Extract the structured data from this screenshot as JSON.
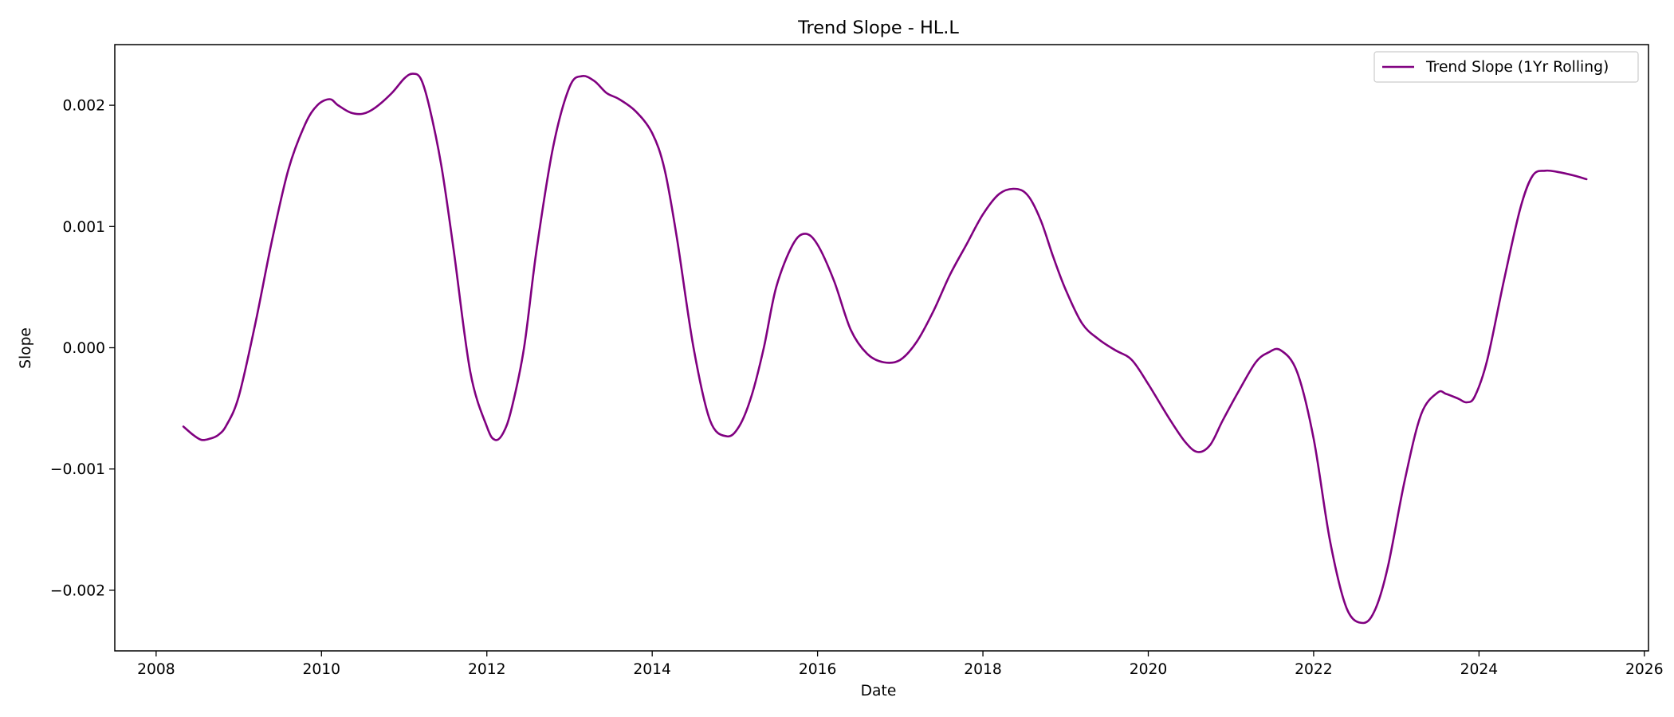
{
  "chart_data": {
    "type": "line",
    "title": "Trend Slope - HL.L",
    "xlabel": "Date",
    "ylabel": "Slope",
    "xlim": [
      2007.5,
      2026.05
    ],
    "ylim": [
      -0.0025,
      0.0025
    ],
    "grid": false,
    "legend_position": "top-right",
    "x_ticks": [
      2008,
      2010,
      2012,
      2014,
      2016,
      2018,
      2020,
      2022,
      2024,
      2026
    ],
    "x_tick_labels": [
      "2008",
      "2010",
      "2012",
      "2014",
      "2016",
      "2018",
      "2020",
      "2022",
      "2024",
      "2026"
    ],
    "y_ticks": [
      -0.002,
      -0.001,
      0.0,
      0.001,
      0.002
    ],
    "y_tick_labels": [
      "−0.002",
      "−0.001",
      "0.000",
      "0.001",
      "0.002"
    ],
    "series": [
      {
        "name": "Trend Slope (1Yr Rolling)",
        "color": "#800080",
        "x": [
          2008.33,
          2008.45,
          2008.55,
          2008.65,
          2008.75,
          2008.85,
          2009.0,
          2009.2,
          2009.4,
          2009.6,
          2009.8,
          2009.95,
          2010.1,
          2010.2,
          2010.35,
          2010.5,
          2010.65,
          2010.85,
          2011.0,
          2011.1,
          2011.2,
          2011.3,
          2011.45,
          2011.6,
          2011.8,
          2012.0,
          2012.1,
          2012.2,
          2012.3,
          2012.45,
          2012.6,
          2012.8,
          2013.0,
          2013.15,
          2013.3,
          2013.45,
          2013.6,
          2013.8,
          2014.0,
          2014.15,
          2014.3,
          2014.5,
          2014.7,
          2014.9,
          2015.05,
          2015.2,
          2015.35,
          2015.5,
          2015.7,
          2015.85,
          2016.0,
          2016.2,
          2016.4,
          2016.6,
          2016.8,
          2017.0,
          2017.2,
          2017.4,
          2017.6,
          2017.8,
          2018.0,
          2018.2,
          2018.4,
          2018.55,
          2018.7,
          2018.85,
          2019.0,
          2019.2,
          2019.4,
          2019.6,
          2019.8,
          2020.0,
          2020.25,
          2020.45,
          2020.6,
          2020.75,
          2020.9,
          2021.1,
          2021.3,
          2021.45,
          2021.6,
          2021.8,
          2022.0,
          2022.2,
          2022.4,
          2022.6,
          2022.75,
          2022.9,
          2023.1,
          2023.3,
          2023.5,
          2023.6,
          2023.75,
          2023.85,
          2023.95,
          2024.1,
          2024.3,
          2024.5,
          2024.65,
          2024.8,
          2024.95,
          2025.15,
          2025.3
        ],
        "y": [
          -0.00065,
          -0.00072,
          -0.00076,
          -0.00075,
          -0.00072,
          -0.00064,
          -0.0004,
          0.0002,
          0.00088,
          0.00147,
          0.00184,
          0.002,
          0.00205,
          0.002,
          0.00194,
          0.00193,
          0.00198,
          0.0021,
          0.00222,
          0.00226,
          0.00222,
          0.002,
          0.0015,
          0.0008,
          -0.0002,
          -0.00065,
          -0.00076,
          -0.0007,
          -0.0005,
          0.0,
          0.0008,
          0.00165,
          0.00215,
          0.00224,
          0.0022,
          0.0021,
          0.00205,
          0.00195,
          0.00177,
          0.00147,
          0.0009,
          0.0,
          -0.0006,
          -0.00073,
          -0.00065,
          -0.0004,
          0.0,
          0.0005,
          0.00085,
          0.00094,
          0.00085,
          0.00055,
          0.00015,
          -5e-05,
          -0.00012,
          -0.0001,
          5e-05,
          0.0003,
          0.0006,
          0.00085,
          0.0011,
          0.00127,
          0.00131,
          0.00125,
          0.00105,
          0.00075,
          0.00048,
          0.0002,
          7e-05,
          -2e-05,
          -0.0001,
          -0.0003,
          -0.00058,
          -0.00078,
          -0.00086,
          -0.0008,
          -0.0006,
          -0.00035,
          -0.00012,
          -4e-05,
          -2e-05,
          -0.0002,
          -0.00075,
          -0.0016,
          -0.00215,
          -0.00227,
          -0.00215,
          -0.0018,
          -0.0011,
          -0.00055,
          -0.00037,
          -0.00038,
          -0.00042,
          -0.00045,
          -0.0004,
          -0.0001,
          0.00055,
          0.00115,
          0.00142,
          0.00146,
          0.00145,
          0.00142,
          0.00139
        ]
      }
    ]
  }
}
